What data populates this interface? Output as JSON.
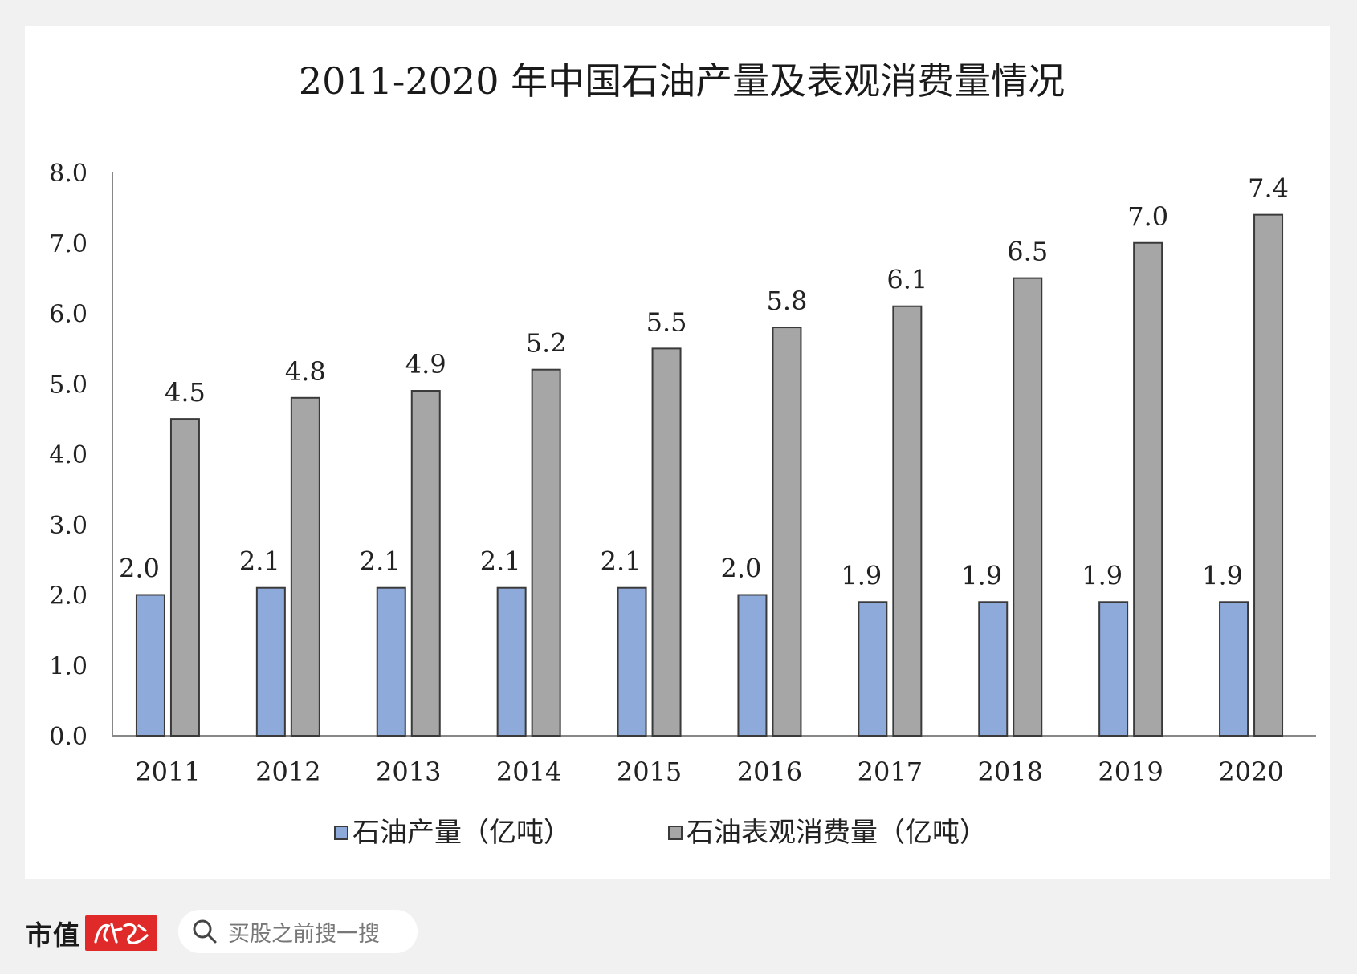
{
  "chart_data": {
    "type": "bar",
    "title": "2011-2020 年中国石油产量及表观消费量情况",
    "categories": [
      "2011",
      "2012",
      "2013",
      "2014",
      "2015",
      "2016",
      "2017",
      "2018",
      "2019",
      "2020"
    ],
    "series": [
      {
        "name": "石油产量（亿吨）",
        "values": [
          2.0,
          2.1,
          2.1,
          2.1,
          2.1,
          2.0,
          1.9,
          1.9,
          1.9,
          1.9
        ],
        "color": "#8eaadb"
      },
      {
        "name": "石油表观消费量（亿吨）",
        "values": [
          4.5,
          4.8,
          4.9,
          5.2,
          5.5,
          5.8,
          6.1,
          6.5,
          7.0,
          7.4
        ],
        "color": "#a6a6a6"
      }
    ],
    "ylim": [
      0,
      8.0
    ],
    "yticks": [
      "0.0",
      "1.0",
      "2.0",
      "3.0",
      "4.0",
      "5.0",
      "6.0",
      "7.0",
      "8.0"
    ],
    "xlabel": "",
    "ylabel": "",
    "grid": false,
    "legend_position": "bottom"
  },
  "footer": {
    "brand": "市值",
    "search_placeholder": "买股之前搜一搜"
  },
  "colors": {
    "background": "#f1f1f1",
    "card": "#ffffff",
    "brand_red": "#e02a2a"
  },
  "icons": {
    "search": "search-icon",
    "brand_mark": "brand-logo-icon"
  }
}
